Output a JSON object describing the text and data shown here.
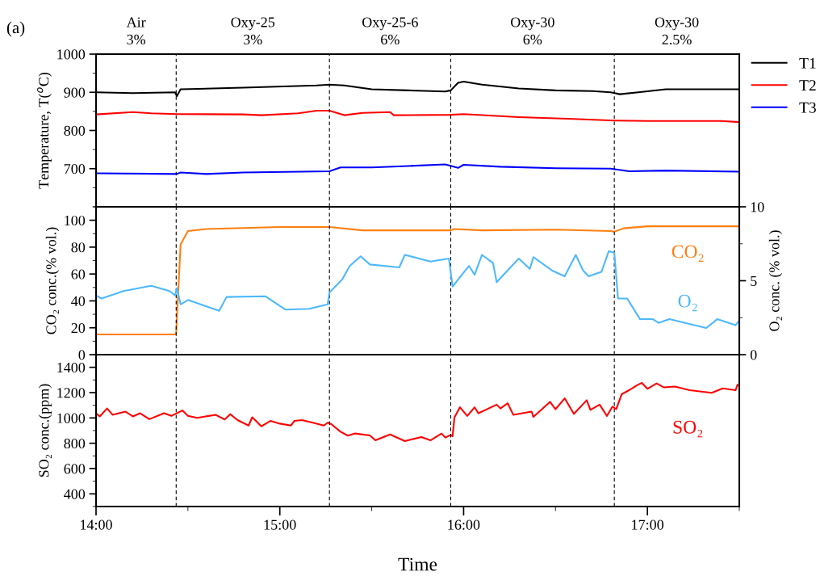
{
  "chart_data": [
    {
      "type": "line",
      "title": "(a)",
      "ylabel": "Temperature, T($^{o}$C)",
      "annotations": [
        "Air\n3%",
        "Oxy-25\n3%",
        "Oxy-25-6\n6%",
        "Oxy-30\n6%",
        "Oxy-30\n2.5%"
      ],
      "xlim": [
        14,
        17.5
      ],
      "ylim": [
        600,
        1000
      ],
      "yticks": [
        700,
        800,
        900,
        1000
      ],
      "tick_labels": "y",
      "legend": "right",
      "grid": false,
      "ref_lines": [
        {
          "axis": "x",
          "value": 14.436,
          "color": "#000000",
          "line_style": "dashed"
        },
        {
          "axis": "x",
          "value": 15.27,
          "color": "#000000",
          "line_style": "dashed"
        },
        {
          "axis": "x",
          "value": 15.93,
          "color": "#000000",
          "line_style": "dashed"
        },
        {
          "axis": "x",
          "value": 16.82,
          "color": "#000000",
          "line_style": "dashed"
        }
      ],
      "series": [
        {
          "name": "T1",
          "color": "#000000",
          "x": [
            14.0,
            14.2,
            14.43,
            14.44,
            14.46,
            14.8,
            15.2,
            15.27,
            15.35,
            15.5,
            15.7,
            15.9,
            15.93,
            15.97,
            16.0,
            16.1,
            16.3,
            16.5,
            16.7,
            16.8,
            16.85,
            16.95,
            17.1,
            17.3,
            17.5
          ],
          "values": [
            900,
            898,
            900,
            890,
            908,
            912,
            918,
            920,
            918,
            908,
            905,
            902,
            905,
            925,
            928,
            920,
            910,
            905,
            903,
            900,
            895,
            900,
            908,
            908,
            908
          ]
        },
        {
          "name": "T2",
          "color": "#ff0000",
          "x": [
            14.0,
            14.2,
            14.3,
            14.44,
            14.8,
            14.9,
            15.1,
            15.2,
            15.27,
            15.35,
            15.45,
            15.6,
            15.62,
            15.93,
            16.0,
            16.3,
            16.6,
            16.82,
            17.0,
            17.4,
            17.5
          ],
          "values": [
            842,
            848,
            845,
            843,
            842,
            840,
            845,
            852,
            852,
            840,
            846,
            848,
            840,
            841,
            843,
            835,
            830,
            826,
            825,
            825,
            822
          ]
        },
        {
          "name": "T3",
          "color": "#0000ff",
          "x": [
            14.0,
            14.44,
            14.46,
            14.6,
            14.8,
            15.27,
            15.33,
            15.5,
            15.7,
            15.9,
            15.97,
            16.0,
            16.2,
            16.5,
            16.8,
            16.9,
            17.1,
            17.5
          ],
          "values": [
            688,
            686,
            690,
            686,
            690,
            693,
            703,
            703,
            707,
            711,
            702,
            710,
            705,
            701,
            700,
            693,
            695,
            692
          ]
        }
      ]
    },
    {
      "type": "line",
      "ylabel": "CO₂ conc.(% vol.)",
      "y2label": "O₂ conc. (% vol.)",
      "xlim": [
        14,
        17.5
      ],
      "ylim": [
        0,
        110
      ],
      "yticks": [
        0,
        20,
        40,
        60,
        80,
        100
      ],
      "y2lim": [
        0,
        10
      ],
      "y2ticks": [
        0,
        5,
        10
      ],
      "tick_labels": "y",
      "grid": false,
      "ref_lines": [
        {
          "axis": "x",
          "value": 14.436,
          "color": "#000000",
          "line_style": "dashed"
        },
        {
          "axis": "x",
          "value": 15.27,
          "color": "#000000",
          "line_style": "dashed"
        },
        {
          "axis": "x",
          "value": 15.93,
          "color": "#000000",
          "line_style": "dashed"
        },
        {
          "axis": "x",
          "value": 16.82,
          "color": "#000000",
          "line_style": "dashed"
        }
      ],
      "series": [
        {
          "name": "CO₂",
          "color": "#ff7f0e",
          "x": [
            14.0,
            14.2,
            14.43,
            14.436,
            14.46,
            14.5,
            14.6,
            15.0,
            15.27,
            15.45,
            15.93,
            15.95,
            16.1,
            16.5,
            16.8,
            16.82,
            16.87,
            17.0,
            17.5
          ],
          "values": [
            15,
            15,
            15,
            16,
            82,
            92,
            93.5,
            95,
            95,
            92.5,
            92.5,
            93.5,
            92.5,
            93,
            92,
            91.5,
            94,
            95.5,
            95.5
          ]
        },
        {
          "name": "O₂",
          "color": "#4db8ff",
          "axis": "y2",
          "x": [
            14.0,
            14.03,
            14.15,
            14.3,
            14.4,
            14.43,
            14.44,
            14.46,
            14.5,
            14.67,
            14.71,
            14.92,
            15.03,
            15.16,
            15.26,
            15.27,
            15.34,
            15.38,
            15.44,
            15.49,
            15.65,
            15.68,
            15.82,
            15.92,
            15.94,
            15.99,
            16.03,
            16.06,
            16.1,
            16.16,
            16.18,
            16.3,
            16.36,
            16.38,
            16.48,
            16.55,
            16.61,
            16.65,
            16.68,
            16.75,
            16.79,
            16.82,
            16.84,
            16.89,
            16.96,
            17.03,
            17.06,
            17.12,
            17.22,
            17.32,
            17.38,
            17.48,
            17.5
          ],
          "values": [
            4.0,
            3.8,
            4.3,
            4.66,
            4.3,
            4.0,
            4.5,
            3.4,
            3.7,
            2.96,
            3.9,
            3.95,
            3.05,
            3.1,
            3.4,
            4.2,
            5.1,
            6.0,
            6.65,
            6.1,
            5.9,
            6.75,
            6.3,
            6.5,
            4.6,
            5.4,
            6.0,
            5.4,
            6.75,
            6.2,
            4.9,
            6.5,
            5.8,
            6.6,
            5.7,
            5.3,
            6.75,
            5.7,
            5.3,
            5.6,
            7.0,
            6.9,
            3.8,
            3.8,
            2.4,
            2.4,
            2.15,
            2.4,
            2.1,
            1.8,
            2.4,
            2.0,
            2.3
          ]
        }
      ]
    },
    {
      "type": "line",
      "xlabel": "Time",
      "ylabel": "SO₂ conc.(ppm)",
      "xlim": [
        14,
        17.5
      ],
      "xticks": [
        {
          "value": 14,
          "label": "14:00"
        },
        {
          "value": 15,
          "label": "15:00"
        },
        {
          "value": 16,
          "label": "16:00"
        },
        {
          "value": 17,
          "label": "17:00"
        }
      ],
      "ylim": [
        300,
        1500
      ],
      "yticks": [
        400,
        600,
        800,
        1000,
        1200,
        1400
      ],
      "grid": false,
      "ref_lines": [
        {
          "axis": "x",
          "value": 14.436,
          "color": "#000000",
          "line_style": "dashed"
        },
        {
          "axis": "x",
          "value": 15.27,
          "color": "#000000",
          "line_style": "dashed"
        },
        {
          "axis": "x",
          "value": 15.93,
          "color": "#000000",
          "line_style": "dashed"
        },
        {
          "axis": "x",
          "value": 16.82,
          "color": "#000000",
          "line_style": "dashed"
        }
      ],
      "series": [
        {
          "name": "SO₂",
          "color": "#ff0000",
          "x": [
            14.0,
            14.02,
            14.06,
            14.09,
            14.16,
            14.2,
            14.24,
            14.29,
            14.37,
            14.41,
            14.47,
            14.5,
            14.55,
            14.65,
            14.7,
            14.73,
            14.77,
            14.83,
            14.85,
            14.9,
            14.95,
            15.0,
            15.06,
            15.08,
            15.12,
            15.18,
            15.24,
            15.26,
            15.28,
            15.33,
            15.37,
            15.41,
            15.49,
            15.52,
            15.6,
            15.68,
            15.77,
            15.82,
            15.88,
            15.9,
            15.93,
            15.94,
            15.95,
            15.98,
            16.02,
            16.06,
            16.08,
            16.18,
            16.2,
            16.24,
            16.27,
            16.37,
            16.38,
            16.47,
            16.5,
            16.55,
            16.6,
            16.67,
            16.69,
            16.74,
            16.78,
            16.81,
            16.83,
            16.86,
            16.9,
            16.94,
            16.97,
            17.0,
            17.05,
            17.09,
            17.15,
            17.23,
            17.35,
            17.41,
            17.48,
            17.49,
            17.5
          ],
          "values": [
            1037,
            1012,
            1075,
            1025,
            1050,
            1012,
            1037,
            990,
            1037,
            1016,
            1059,
            1016,
            1000,
            1025,
            988,
            1030,
            983,
            940,
            1005,
            934,
            977,
            955,
            940,
            977,
            983,
            962,
            940,
            962,
            951,
            891,
            860,
            877,
            862,
            823,
            870,
            817,
            849,
            823,
            877,
            845,
            866,
            855,
            1004,
            1084,
            1016,
            1084,
            1037,
            1105,
            1075,
            1116,
            1025,
            1050,
            1008,
            1127,
            1069,
            1155,
            1032,
            1140,
            1063,
            1105,
            1016,
            1090,
            1069,
            1187,
            1219,
            1255,
            1277,
            1230,
            1273,
            1241,
            1248,
            1219,
            1198,
            1234,
            1219,
            1262,
            1251
          ]
        }
      ]
    }
  ]
}
